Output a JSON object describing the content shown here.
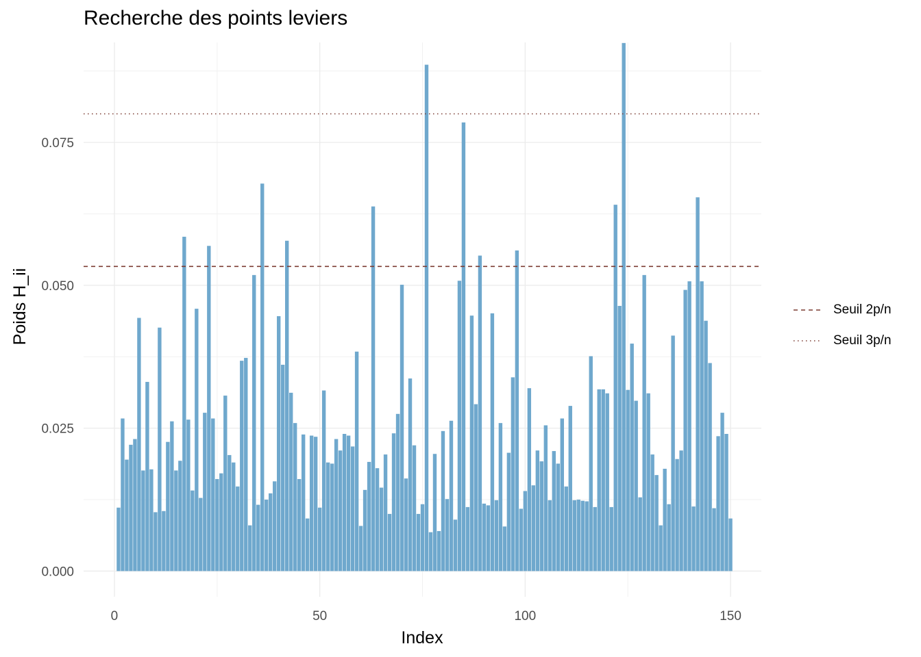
{
  "chart_data": {
    "type": "bar",
    "title": "Recherche des points leviers",
    "xlabel": "Index",
    "ylabel": "Poids H_ii",
    "xlim": [
      -7.5,
      157.5
    ],
    "ylim": [
      -0.0045,
      0.0925
    ],
    "x_ticks": [
      0,
      50,
      100,
      150
    ],
    "x_tick_labels": [
      "0",
      "50",
      "100",
      "150"
    ],
    "y_ticks": [
      0,
      0.025,
      0.05,
      0.075
    ],
    "y_tick_labels": [
      "0.000",
      "0.025",
      "0.050",
      "0.075"
    ],
    "grid": true,
    "bar_color": "#6fa8cd",
    "x": [
      1,
      2,
      3,
      4,
      5,
      6,
      7,
      8,
      9,
      10,
      11,
      12,
      13,
      14,
      15,
      16,
      17,
      18,
      19,
      20,
      21,
      22,
      23,
      24,
      25,
      26,
      27,
      28,
      29,
      30,
      31,
      32,
      33,
      34,
      35,
      36,
      37,
      38,
      39,
      40,
      41,
      42,
      43,
      44,
      45,
      46,
      47,
      48,
      49,
      50,
      51,
      52,
      53,
      54,
      55,
      56,
      57,
      58,
      59,
      60,
      61,
      62,
      63,
      64,
      65,
      66,
      67,
      68,
      69,
      70,
      71,
      72,
      73,
      74,
      75,
      76,
      77,
      78,
      79,
      80,
      81,
      82,
      83,
      84,
      85,
      86,
      87,
      88,
      89,
      90,
      91,
      92,
      93,
      94,
      95,
      96,
      97,
      98,
      99,
      100,
      101,
      102,
      103,
      104,
      105,
      106,
      107,
      108,
      109,
      110,
      111,
      112,
      113,
      114,
      115,
      116,
      117,
      118,
      119,
      120,
      121,
      122,
      123,
      124,
      125,
      126,
      127,
      128,
      129,
      130,
      131,
      132,
      133,
      134,
      135,
      136,
      137,
      138,
      139,
      140,
      141,
      142,
      143,
      144,
      145,
      146,
      147,
      148,
      149,
      150
    ],
    "values": [
      0.0111,
      0.0267,
      0.0195,
      0.0221,
      0.0231,
      0.0443,
      0.0176,
      0.0331,
      0.0178,
      0.0103,
      0.0426,
      0.0105,
      0.0226,
      0.0262,
      0.0176,
      0.0193,
      0.0585,
      0.0265,
      0.0141,
      0.0459,
      0.0128,
      0.0277,
      0.0569,
      0.0267,
      0.0161,
      0.0171,
      0.0307,
      0.0203,
      0.019,
      0.0148,
      0.0368,
      0.0373,
      0.008,
      0.0518,
      0.0116,
      0.0678,
      0.0125,
      0.0136,
      0.0157,
      0.0446,
      0.0361,
      0.0578,
      0.0312,
      0.0259,
      0.0161,
      0.0239,
      0.0092,
      0.0237,
      0.0235,
      0.0111,
      0.0316,
      0.019,
      0.0188,
      0.0231,
      0.0211,
      0.024,
      0.0237,
      0.0218,
      0.0384,
      0.0079,
      0.0142,
      0.0191,
      0.0638,
      0.018,
      0.0146,
      0.0204,
      0.01,
      0.0241,
      0.0275,
      0.0501,
      0.0162,
      0.0337,
      0.022,
      0.01,
      0.0117,
      0.0886,
      0.0068,
      0.0205,
      0.007,
      0.0245,
      0.0126,
      0.0263,
      0.009,
      0.0508,
      0.0785,
      0.0112,
      0.0447,
      0.0292,
      0.0552,
      0.0118,
      0.0115,
      0.0451,
      0.0124,
      0.0259,
      0.0078,
      0.0207,
      0.0339,
      0.0561,
      0.0109,
      0.014,
      0.032,
      0.015,
      0.0211,
      0.0192,
      0.0255,
      0.0124,
      0.021,
      0.0188,
      0.0267,
      0.0148,
      0.0289,
      0.0124,
      0.0125,
      0.0123,
      0.0122,
      0.0376,
      0.0112,
      0.0318,
      0.0318,
      0.0311,
      0.0112,
      0.0641,
      0.0464,
      0.0924,
      0.0317,
      0.0398,
      0.0298,
      0.0129,
      0.0518,
      0.0311,
      0.0204,
      0.0168,
      0.008,
      0.0179,
      0.0117,
      0.0412,
      0.0196,
      0.0211,
      0.0492,
      0.0507,
      0.0113,
      0.0654,
      0.0507,
      0.0438,
      0.0364,
      0.011,
      0.0236,
      0.0277,
      0.024,
      0.0092
    ],
    "thresholds": [
      {
        "name": "Seuil 2p/n",
        "value": 0.0533,
        "linetype": "dashed",
        "color": "#7b3b31"
      },
      {
        "name": "Seuil 3p/n",
        "value": 0.08,
        "linetype": "dotted",
        "color": "#7b3b31"
      }
    ],
    "legend_position": "right"
  }
}
